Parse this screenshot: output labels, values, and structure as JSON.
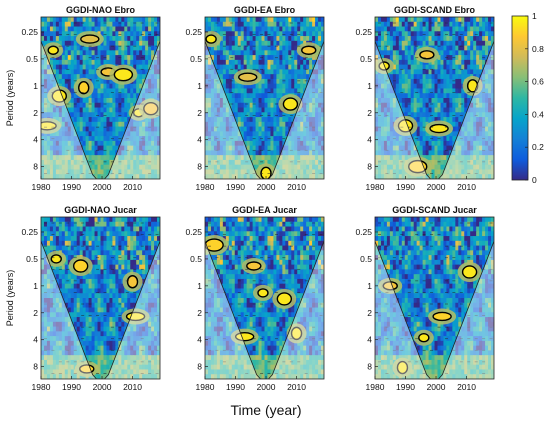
{
  "figure": {
    "xlabel": "Time (year)",
    "colormap": [
      "#352a87",
      "#0f5cdd",
      "#1481d6",
      "#06a4ca",
      "#2eb7a4",
      "#87bf77",
      "#d1bb59",
      "#fec832",
      "#f9fb0e"
    ],
    "colorbar": {
      "ticks": [
        0,
        0.2,
        0.4,
        0.6,
        0.8,
        1
      ],
      "labels": [
        "0",
        "0.2",
        "0.4",
        "0.6",
        "0.8",
        "1"
      ]
    }
  },
  "chart_data": [
    {
      "type": "heatmap",
      "title": "GGDI-NAO Ebro",
      "ylabel": "Period (years)",
      "x_ticks": [
        1980,
        1990,
        2000,
        2010
      ],
      "x_tick_labels": [
        "1980",
        "1990",
        "2000",
        "2010"
      ],
      "xlim": [
        1980,
        2019
      ],
      "y_ticks": [
        0.25,
        0.5,
        1,
        2,
        4,
        8
      ],
      "y_tick_labels": [
        "0.25",
        "0.5",
        "1",
        "2",
        "4",
        "8"
      ],
      "ylim": [
        0.17,
        11
      ],
      "y_scale": "log2-reversed",
      "clim": [
        0,
        1
      ],
      "regions": [
        {
          "x": 1984,
          "y": 0.4,
          "level": 0.95
        },
        {
          "x": 1986,
          "y": 1.3,
          "level": 0.95
        },
        {
          "x": 1982,
          "y": 2.8,
          "level": 0.95
        },
        {
          "x": 1994,
          "y": 1.05,
          "level": 0.9
        },
        {
          "x": 2002,
          "y": 0.7,
          "level": 0.85
        },
        {
          "x": 2007,
          "y": 0.75,
          "level": 0.95
        },
        {
          "x": 2012,
          "y": 2.0,
          "level": 0.95
        },
        {
          "x": 2016,
          "y": 1.8,
          "level": 0.85
        },
        {
          "x": 1996,
          "y": 0.3,
          "level": 0.8
        }
      ]
    },
    {
      "type": "heatmap",
      "title": "GGDI-EA Ebro",
      "ylabel": "",
      "x_ticks": [
        1980,
        1990,
        2000,
        2010
      ],
      "x_tick_labels": [
        "1980",
        "1990",
        "2000",
        "2010"
      ],
      "xlim": [
        1980,
        2019
      ],
      "y_ticks": [
        0.25,
        0.5,
        1,
        2,
        4,
        8
      ],
      "y_tick_labels": [
        "0.25",
        "0.5",
        "1",
        "2",
        "4",
        "8"
      ],
      "ylim": [
        0.17,
        11
      ],
      "y_scale": "log2-reversed",
      "clim": [
        0,
        1
      ],
      "regions": [
        {
          "x": 1982,
          "y": 0.3,
          "level": 0.95
        },
        {
          "x": 2008,
          "y": 1.6,
          "level": 0.95
        },
        {
          "x": 1994,
          "y": 0.8,
          "level": 0.8
        },
        {
          "x": 2000,
          "y": 9.5,
          "level": 0.95
        },
        {
          "x": 2014,
          "y": 0.4,
          "level": 0.85
        }
      ]
    },
    {
      "type": "heatmap",
      "title": "GGDI-SCAND Ebro",
      "ylabel": "",
      "x_ticks": [
        1980,
        1990,
        2000,
        2010
      ],
      "x_tick_labels": [
        "1980",
        "1990",
        "2000",
        "2010"
      ],
      "xlim": [
        1980,
        2019
      ],
      "y_ticks": [
        0.25,
        0.5,
        1,
        2,
        4,
        8
      ],
      "y_tick_labels": [
        "0.25",
        "0.5",
        "1",
        "2",
        "4",
        "8"
      ],
      "ylim": [
        0.17,
        11
      ],
      "y_scale": "log2-reversed",
      "clim": [
        0,
        1
      ],
      "regions": [
        {
          "x": 1983,
          "y": 0.6,
          "level": 0.95
        },
        {
          "x": 1990,
          "y": 2.8,
          "level": 0.95
        },
        {
          "x": 2001,
          "y": 3.0,
          "level": 0.95
        },
        {
          "x": 2012,
          "y": 1.0,
          "level": 0.95
        },
        {
          "x": 1997,
          "y": 0.45,
          "level": 0.85
        },
        {
          "x": 1994,
          "y": 8.0,
          "level": 0.9
        }
      ]
    },
    {
      "type": "heatmap",
      "title": "GGDI-NAO Jucar",
      "ylabel": "Period (years)",
      "x_ticks": [
        1980,
        1990,
        2000,
        2010
      ],
      "x_tick_labels": [
        "1980",
        "1990",
        "2000",
        "2010"
      ],
      "xlim": [
        1980,
        2019
      ],
      "y_ticks": [
        0.25,
        0.5,
        1,
        2,
        4,
        8
      ],
      "y_tick_labels": [
        "0.25",
        "0.5",
        "1",
        "2",
        "4",
        "8"
      ],
      "ylim": [
        0.17,
        11
      ],
      "y_scale": "log2-reversed",
      "clim": [
        0,
        1
      ],
      "regions": [
        {
          "x": 1985,
          "y": 0.5,
          "level": 0.95
        },
        {
          "x": 1993,
          "y": 0.6,
          "level": 0.9
        },
        {
          "x": 2011,
          "y": 2.2,
          "level": 0.95
        },
        {
          "x": 2010,
          "y": 0.9,
          "level": 0.85
        },
        {
          "x": 1995,
          "y": 8.5,
          "level": 0.9
        }
      ]
    },
    {
      "type": "heatmap",
      "title": "GGDI-EA Jucar",
      "ylabel": "",
      "x_ticks": [
        1980,
        1990,
        2000,
        2010
      ],
      "x_tick_labels": [
        "1980",
        "1990",
        "2000",
        "2010"
      ],
      "xlim": [
        1980,
        2019
      ],
      "y_ticks": [
        0.25,
        0.5,
        1,
        2,
        4,
        8
      ],
      "y_tick_labels": [
        "0.25",
        "0.5",
        "1",
        "2",
        "4",
        "8"
      ],
      "ylim": [
        0.17,
        11
      ],
      "y_scale": "log2-reversed",
      "clim": [
        0,
        1
      ],
      "regions": [
        {
          "x": 1999,
          "y": 1.2,
          "level": 0.95
        },
        {
          "x": 2006,
          "y": 1.4,
          "level": 0.95
        },
        {
          "x": 1993,
          "y": 3.7,
          "level": 0.95
        },
        {
          "x": 2010,
          "y": 3.4,
          "level": 0.95
        },
        {
          "x": 1996,
          "y": 0.6,
          "level": 0.85
        },
        {
          "x": 1983,
          "y": 0.35,
          "level": 0.9
        }
      ]
    },
    {
      "type": "heatmap",
      "title": "GGDI-SCAND Jucar",
      "ylabel": "",
      "x_ticks": [
        1980,
        1990,
        2000,
        2010
      ],
      "x_tick_labels": [
        "1980",
        "1990",
        "2000",
        "2010"
      ],
      "xlim": [
        1980,
        2019
      ],
      "y_ticks": [
        0.25,
        0.5,
        1,
        2,
        4,
        8
      ],
      "y_tick_labels": [
        "0.25",
        "0.5",
        "1",
        "2",
        "4",
        "8"
      ],
      "ylim": [
        0.17,
        11
      ],
      "y_scale": "log2-reversed",
      "clim": [
        0,
        1
      ],
      "regions": [
        {
          "x": 1996,
          "y": 3.8,
          "level": 0.95
        },
        {
          "x": 2011,
          "y": 0.7,
          "level": 0.95
        },
        {
          "x": 2002,
          "y": 2.2,
          "level": 0.9
        },
        {
          "x": 1989,
          "y": 8.2,
          "level": 0.95
        },
        {
          "x": 1985,
          "y": 1.0,
          "level": 0.85
        }
      ]
    }
  ]
}
